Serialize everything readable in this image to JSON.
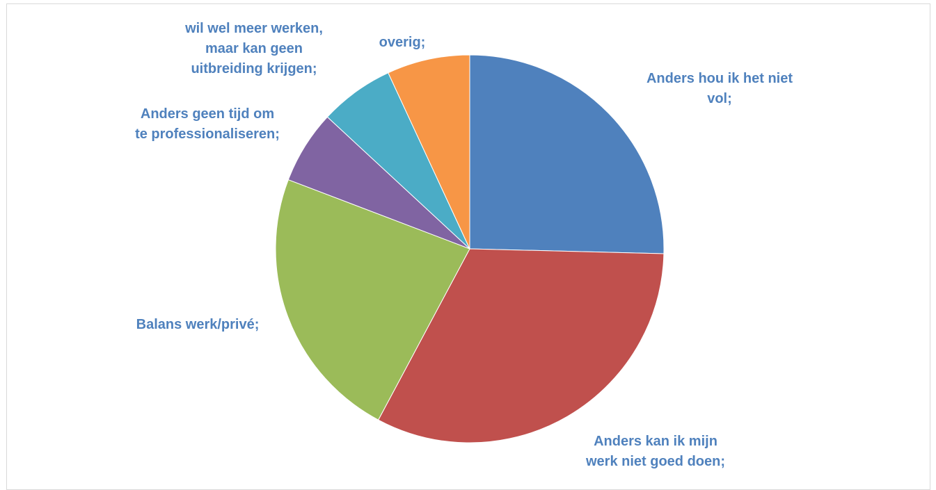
{
  "chart_data": {
    "type": "pie",
    "title": "",
    "series": [
      {
        "values": [
          25.4,
          32.4,
          23.0,
          6.1,
          6.2,
          6.9
        ]
      }
    ],
    "categories": [
      "Anders hou ik het niet vol;",
      "Anders kan ik mijn werk niet goed doen;",
      "Balans werk/privé;",
      "Anders geen tijd om te professionaliseren;",
      "wil wel meer werken, maar kan geen uitbreiding krijgen;",
      "overig;"
    ],
    "label_lines": [
      [
        "Anders hou ik het niet",
        "vol;"
      ],
      [
        "Anders kan ik mijn",
        "werk niet goed doen;"
      ],
      [
        "Balans werk/privé;"
      ],
      [
        "Anders geen tijd om",
        "te professionaliseren;"
      ],
      [
        "wil wel meer werken,",
        "maar kan geen",
        "uitbreiding krijgen;"
      ],
      [
        "overig;"
      ]
    ],
    "colors": [
      "#4f81bd",
      "#c0504d",
      "#9bbb59",
      "#8064a2",
      "#4bacc6",
      "#f79646"
    ],
    "label_color": "#4f81bd",
    "legend": "none",
    "start_angle": "12 o'clock",
    "direction": "clockwise"
  }
}
